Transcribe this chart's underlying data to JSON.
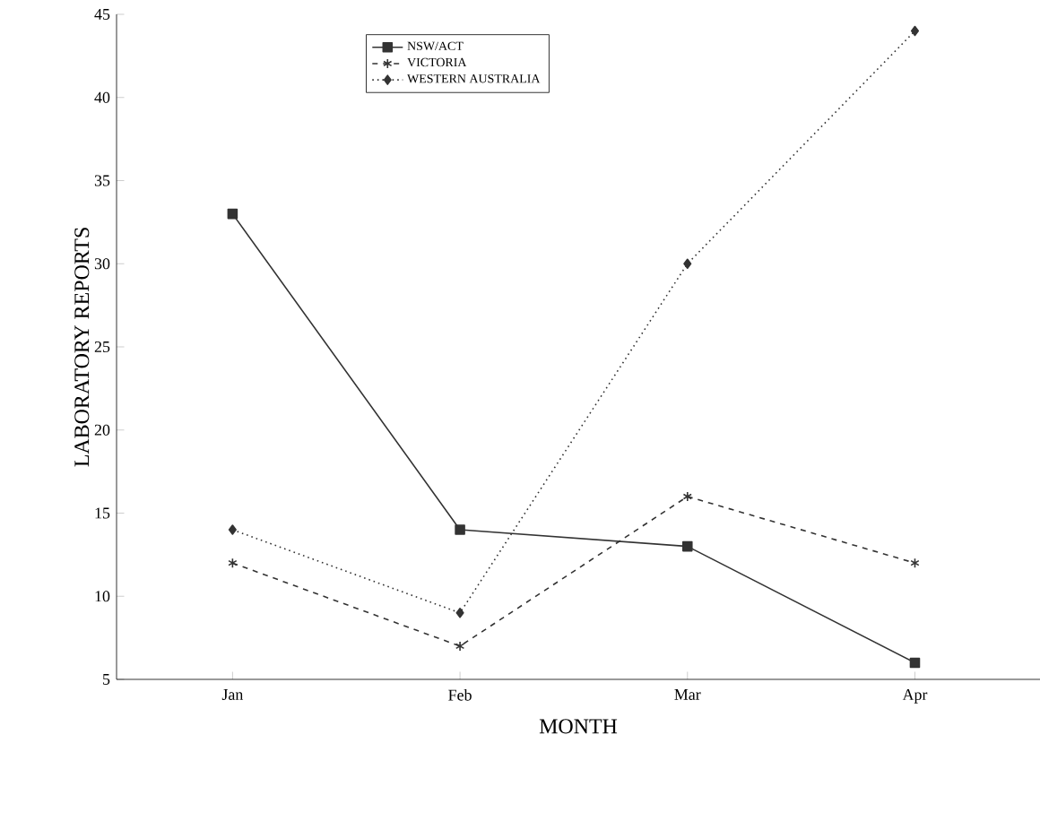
{
  "chart_data": {
    "type": "line",
    "xlabel": "MONTH",
    "ylabel": "LABORATORY REPORTS",
    "categories": [
      "Jan",
      "Feb",
      "Mar",
      "Apr"
    ],
    "series": [
      {
        "name": "NSW/ACT",
        "color": "#333333",
        "values": [
          33,
          14,
          13,
          6
        ],
        "marker": "square",
        "line_style": "solid"
      },
      {
        "name": "VICTORIA",
        "color": "#333333",
        "values": [
          12,
          7,
          16,
          12
        ],
        "marker": "cross",
        "line_style": "dashed"
      },
      {
        "name": "WESTERN AUSTRALIA",
        "color": "#333333",
        "values": [
          14,
          9,
          30,
          44
        ],
        "marker": "diamond",
        "line_style": "dotted"
      }
    ],
    "ylim": [
      5,
      45
    ],
    "yticks": [
      5,
      10,
      15,
      20,
      25,
      30,
      35,
      40,
      45
    ],
    "grid": false,
    "legend": "top"
  }
}
